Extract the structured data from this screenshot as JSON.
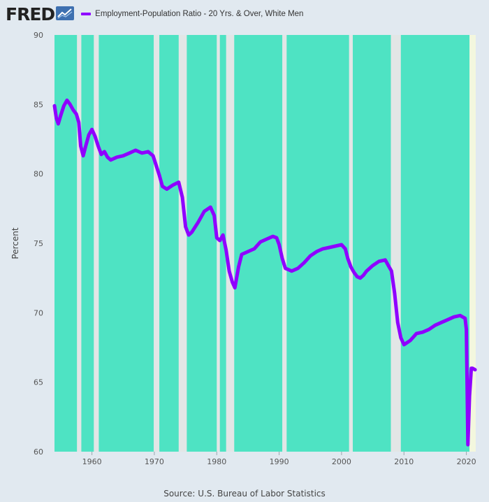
{
  "header": {
    "logo_text": "FRED",
    "logo_icon": "chart-trend-icon"
  },
  "source_text": "Source: U.S. Bureau of Labor Statistics",
  "colors": {
    "background": "#e1e9f0",
    "series": "#8f00ff",
    "plot_band": "#4ee3c3",
    "recession_gap": "#e2e6e6",
    "latest_gap": "#f3f7de"
  },
  "chart_data": {
    "type": "line",
    "title": "",
    "xlabel": "",
    "ylabel": "Percent",
    "xlim": [
      1954.0,
      2021.5
    ],
    "ylim": [
      60,
      90
    ],
    "yticks": [
      60,
      65,
      70,
      75,
      80,
      85,
      90
    ],
    "xticks": [
      1960,
      1970,
      1980,
      1990,
      2000,
      2010,
      2020
    ],
    "grid": false,
    "legend_position": "top",
    "series": [
      {
        "name": "Employment-Population Ratio - 20 Yrs. & Over, White Men",
        "x": [
          1954.0,
          1954.3,
          1954.6,
          1955.0,
          1955.5,
          1956.0,
          1956.5,
          1957.0,
          1957.5,
          1957.9,
          1958.2,
          1958.6,
          1959.0,
          1959.5,
          1960.0,
          1960.5,
          1961.0,
          1961.5,
          1962.0,
          1962.5,
          1963.0,
          1964.0,
          1965.0,
          1966.0,
          1967.0,
          1968.0,
          1969.0,
          1969.8,
          1970.3,
          1970.8,
          1971.3,
          1972.0,
          1973.0,
          1973.9,
          1974.5,
          1975.0,
          1975.5,
          1976.0,
          1977.0,
          1978.0,
          1979.0,
          1979.6,
          1980.0,
          1980.5,
          1981.0,
          1981.5,
          1982.0,
          1982.5,
          1982.9,
          1983.5,
          1984.0,
          1985.0,
          1986.0,
          1987.0,
          1988.0,
          1989.0,
          1989.6,
          1990.0,
          1990.5,
          1991.0,
          1991.5,
          1992.0,
          1993.0,
          1994.0,
          1995.0,
          1996.0,
          1997.0,
          1998.0,
          1999.0,
          2000.0,
          2000.6,
          2001.0,
          2001.5,
          2002.0,
          2002.5,
          2003.0,
          2003.5,
          2004.0,
          2005.0,
          2006.0,
          2007.0,
          2007.5,
          2008.0,
          2008.5,
          2009.0,
          2009.5,
          2010.0,
          2011.0,
          2012.0,
          2013.0,
          2014.0,
          2015.0,
          2016.0,
          2017.0,
          2018.0,
          2019.0,
          2019.8,
          2020.0,
          2020.25,
          2020.5,
          2020.8,
          2021.0,
          2021.4
        ],
        "values": [
          84.9,
          84.0,
          83.6,
          84.2,
          84.9,
          85.3,
          85.0,
          84.6,
          84.3,
          83.7,
          82.0,
          81.3,
          82.0,
          82.8,
          83.2,
          82.7,
          82.0,
          81.4,
          81.6,
          81.2,
          81.0,
          81.2,
          81.3,
          81.5,
          81.7,
          81.5,
          81.6,
          81.3,
          80.6,
          79.9,
          79.1,
          78.9,
          79.2,
          79.4,
          78.3,
          76.2,
          75.6,
          75.8,
          76.5,
          77.3,
          77.6,
          77.0,
          75.4,
          75.2,
          75.6,
          74.5,
          73.0,
          72.2,
          71.8,
          73.3,
          74.2,
          74.4,
          74.6,
          75.1,
          75.3,
          75.5,
          75.4,
          74.9,
          73.9,
          73.2,
          73.1,
          73.0,
          73.2,
          73.6,
          74.1,
          74.4,
          74.6,
          74.7,
          74.8,
          74.9,
          74.6,
          73.9,
          73.3,
          72.9,
          72.6,
          72.5,
          72.7,
          73.0,
          73.4,
          73.7,
          73.8,
          73.4,
          73.0,
          71.4,
          69.3,
          68.2,
          67.7,
          68.0,
          68.5,
          68.6,
          68.8,
          69.1,
          69.3,
          69.5,
          69.7,
          69.8,
          69.6,
          68.8,
          60.5,
          64.0,
          66.0,
          66.0,
          65.9
        ]
      }
    ],
    "shaded_intervals": [
      [
        1957.6,
        1958.3
      ],
      [
        1960.3,
        1961.1
      ],
      [
        1969.9,
        1970.8
      ],
      [
        1973.9,
        1975.2
      ],
      [
        1980.0,
        1980.5
      ],
      [
        1981.5,
        1982.8
      ],
      [
        1990.5,
        1991.2
      ],
      [
        2001.2,
        2001.8
      ],
      [
        2007.9,
        2009.5
      ]
    ],
    "latest_interval": [
      2020.5,
      2021.5
    ]
  }
}
